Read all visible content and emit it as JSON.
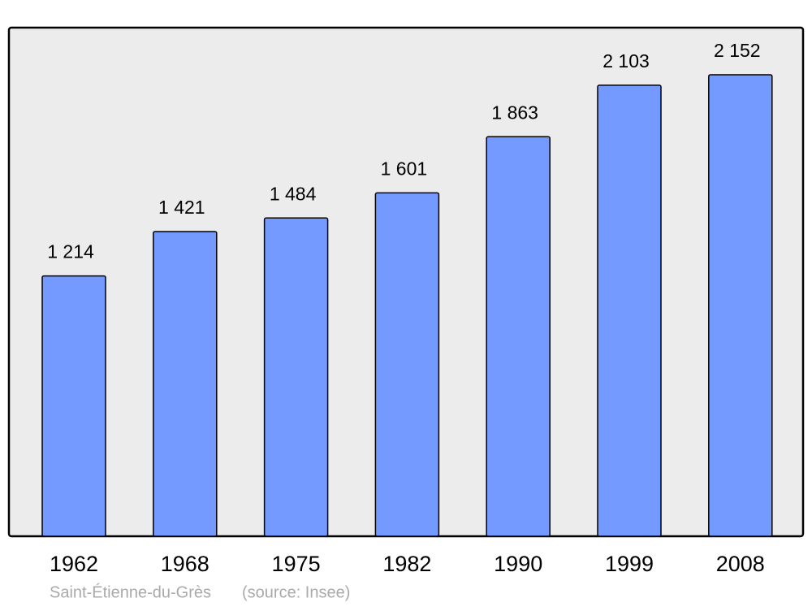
{
  "chart_data": {
    "type": "bar",
    "categories": [
      "1962",
      "1968",
      "1975",
      "1982",
      "1990",
      "1999",
      "2008"
    ],
    "values": [
      1214,
      1421,
      1484,
      1601,
      1863,
      2103,
      2152
    ],
    "value_labels": [
      "1 214",
      "1 421",
      "1 484",
      "1 601",
      "1 863",
      "2 103",
      "2 152"
    ],
    "color": "#7499ff",
    "caption": "Saint-Étienne-du-Grès",
    "source": "(source: Insee)"
  }
}
